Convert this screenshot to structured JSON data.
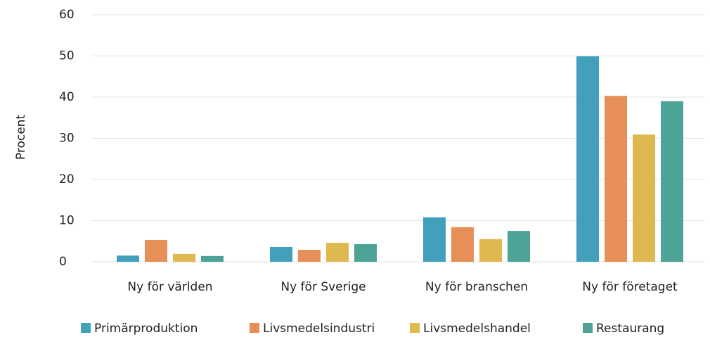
{
  "chart_data": {
    "type": "bar",
    "ylabel": "Procent",
    "categories": [
      "Ny för världen",
      "Ny för Sverige",
      "Ny för branschen",
      "Ny för företaget"
    ],
    "series": [
      {
        "name": "Primärproduktion",
        "color": "#43a0bd",
        "values": [
          1.5,
          3.6,
          10.8,
          49.9
        ]
      },
      {
        "name": "Livsmedelsindustri",
        "color": "#e68f58",
        "values": [
          5.3,
          2.9,
          8.4,
          40.3
        ]
      },
      {
        "name": "Livsmedelshandel",
        "color": "#dfb84f",
        "values": [
          1.9,
          4.6,
          5.5,
          30.9
        ]
      },
      {
        "name": "Restaurang",
        "color": "#4ca396",
        "values": [
          1.4,
          4.3,
          7.5,
          39
        ]
      }
    ],
    "ylim": [
      0,
      60
    ],
    "yticks": [
      0,
      10,
      20,
      30,
      40,
      50,
      60
    ],
    "grid": true,
    "legend": "bottom"
  }
}
